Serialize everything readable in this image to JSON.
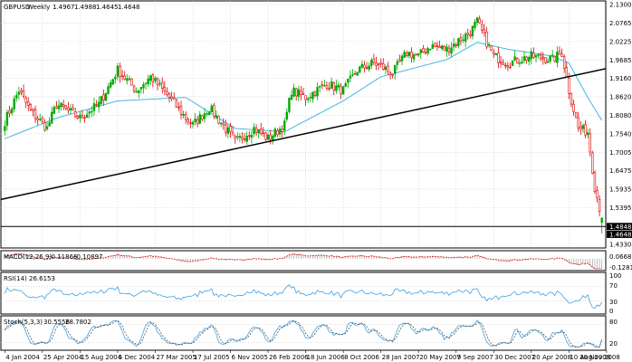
{
  "colors": {
    "background": "#ffffff",
    "frame": "#000000",
    "grid": "#c8c8c8",
    "bull": "#00aa00",
    "bear": "#e00000",
    "ma": "#40b8e0",
    "trendline": "#000000",
    "macd_signal": "#e00000",
    "macd_hist": "#a0a0a0",
    "rsi": "#40a0e0",
    "stoch_main": "#40a0e0",
    "stoch_signal": "#404040"
  },
  "chart_data": {
    "type": "candlestick",
    "symbol": "GBPUSD",
    "timeframe": "Weekly",
    "ohlc_readout": [
      "1.4967",
      "1.4988",
      "1.4645",
      "1.4648"
    ],
    "ylim": [
      1.433,
      2.13
    ],
    "y_ticks": [
      "2.1300",
      "2.0765",
      "2.0225",
      "1.9685",
      "1.9160",
      "1.8620",
      "1.8080",
      "1.7540",
      "1.7005",
      "1.6475",
      "1.5935",
      "1.5395",
      "1.4648",
      "1.4330"
    ],
    "price_tags": [
      "1.4848",
      "1.4648"
    ],
    "horizontal_line": 1.4848,
    "trendline": {
      "from": [
        "2004-01-04",
        1.565
      ],
      "to": [
        "2008-12-07",
        1.945
      ]
    },
    "x_ticks": [
      "4 Jan 2004",
      "25 Apr 2004",
      "15 Aug 2004",
      "5 Dec 2004",
      "27 Mar 2005",
      "17 Jul 2005",
      "6 Nov 2005",
      "26 Feb 2006",
      "18 Jun 2006",
      "8 Oct 2006",
      "28 Jan 2007",
      "20 May 2007",
      "9 Sep 2007",
      "30 Dec 2007",
      "20 Apr 2008",
      "10 Aug 2008",
      "30 Nov 2008"
    ],
    "candles": {
      "start": "2004-01-04",
      "interval": "week",
      "count": 255,
      "close_anchors": [
        [
          "2004-01-04",
          1.79
        ],
        [
          "2004-02-15",
          1.88
        ],
        [
          "2004-03-21",
          1.82
        ],
        [
          "2004-05-09",
          1.77
        ],
        [
          "2004-06-06",
          1.84
        ],
        [
          "2004-08-15",
          1.8
        ],
        [
          "2004-10-10",
          1.84
        ],
        [
          "2004-12-05",
          1.94
        ],
        [
          "2005-01-30",
          1.88
        ],
        [
          "2005-03-13",
          1.92
        ],
        [
          "2005-05-08",
          1.86
        ],
        [
          "2005-06-26",
          1.8
        ],
        [
          "2005-07-17",
          1.78
        ],
        [
          "2005-09-04",
          1.83
        ],
        [
          "2005-10-30",
          1.76
        ],
        [
          "2005-11-20",
          1.73
        ],
        [
          "2006-01-15",
          1.77
        ],
        [
          "2006-02-26",
          1.74
        ],
        [
          "2006-04-16",
          1.78
        ],
        [
          "2006-05-07",
          1.88
        ],
        [
          "2006-06-18",
          1.86
        ],
        [
          "2006-08-20",
          1.9
        ],
        [
          "2006-10-08",
          1.88
        ],
        [
          "2006-11-19",
          1.94
        ],
        [
          "2007-01-07",
          1.96
        ],
        [
          "2007-01-28",
          1.95
        ],
        [
          "2007-03-04",
          1.93
        ],
        [
          "2007-04-15",
          1.99
        ],
        [
          "2007-05-20",
          1.98
        ],
        [
          "2007-06-24",
          2.01
        ],
        [
          "2007-08-12",
          2.0
        ],
        [
          "2007-09-09",
          2.02
        ],
        [
          "2007-10-21",
          2.05
        ],
        [
          "2007-11-11",
          2.08
        ],
        [
          "2007-12-09",
          2.02
        ],
        [
          "2007-12-30",
          1.98
        ],
        [
          "2008-02-10",
          1.96
        ],
        [
          "2008-04-20",
          1.98
        ],
        [
          "2008-06-22",
          1.97
        ],
        [
          "2008-07-20",
          1.99
        ],
        [
          "2008-08-10",
          1.88
        ],
        [
          "2008-09-07",
          1.77
        ],
        [
          "2008-10-05",
          1.76
        ],
        [
          "2008-10-26",
          1.6
        ],
        [
          "2008-11-16",
          1.51
        ],
        [
          "2008-12-07",
          1.4648
        ]
      ]
    },
    "moving_average": {
      "anchors": [
        [
          "2004-01-04",
          1.74
        ],
        [
          "2004-06-06",
          1.8
        ],
        [
          "2004-12-05",
          1.85
        ],
        [
          "2005-06-26",
          1.86
        ],
        [
          "2005-11-20",
          1.77
        ],
        [
          "2006-04-16",
          1.76
        ],
        [
          "2006-10-08",
          1.85
        ],
        [
          "2007-01-28",
          1.92
        ],
        [
          "2007-08-12",
          1.97
        ],
        [
          "2007-11-11",
          2.02
        ],
        [
          "2008-02-10",
          2.0
        ],
        [
          "2008-06-22",
          1.98
        ],
        [
          "2008-08-10",
          1.96
        ],
        [
          "2008-10-05",
          1.86
        ],
        [
          "2008-12-07",
          1.76
        ]
      ]
    },
    "macd": {
      "label": "MACD(12,26,9)",
      "values": [
        "-0.11866",
        "-0.10897"
      ],
      "y_ticks": [
        "0.06683",
        "-0.12812"
      ]
    },
    "rsi": {
      "label": "RSI(14)",
      "value": "26.6153",
      "y_ticks": [
        "100",
        "70",
        "30",
        "0"
      ],
      "levels": [
        30,
        70
      ]
    },
    "stochastic": {
      "label": "Stoch(5,3,3)",
      "values": [
        "30.5556",
        "28.7802"
      ],
      "y_ticks": [
        "80",
        "20"
      ],
      "levels": [
        20,
        80
      ]
    }
  }
}
